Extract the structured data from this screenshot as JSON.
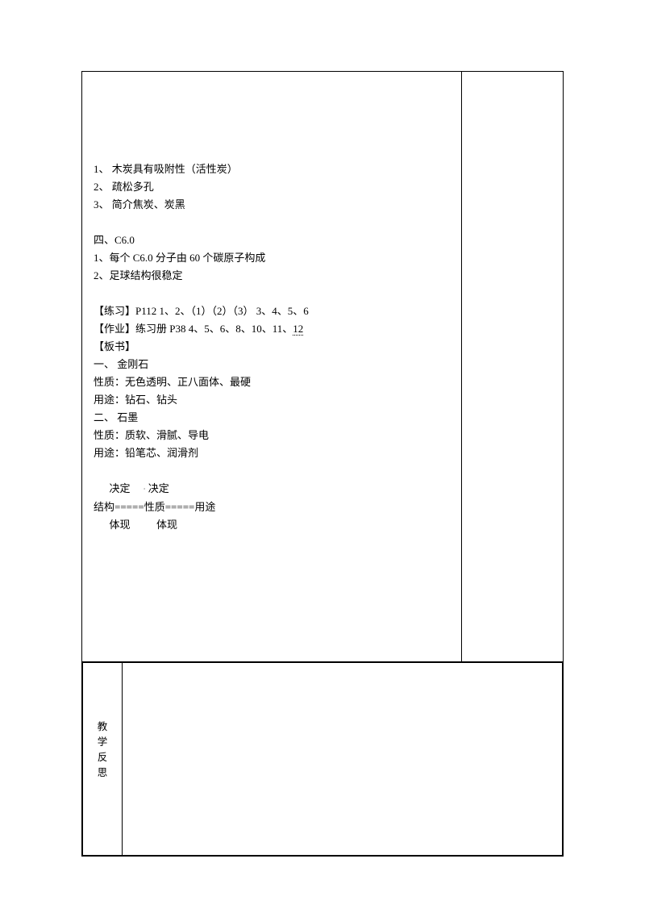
{
  "section_3": {
    "items": [
      "1、 木炭具有吸附性（活性炭）",
      "2、 疏松多孔",
      "3、 简介焦炭、炭黑"
    ]
  },
  "section_4": {
    "title": "四、C6.0",
    "items": [
      "1、每个 C6.0 分子由 60 个碳原子构成",
      "2、足球结构很稳定"
    ]
  },
  "exercise": {
    "label": "【练习】",
    "text": "P112 1、2、（1）（2）（3） 3、4、5、6"
  },
  "homework": {
    "label": "【作业】",
    "prefix": "练习册 P38  4、5、6、8、10、11、",
    "last": "12"
  },
  "board": {
    "label": "【板书】",
    "diamond_title": "一、 金刚石",
    "diamond_prop": "性质：无色透明、正八面体、最硬",
    "diamond_use": "用途：钻石、钻头",
    "graphite_title": "二、 石墨",
    "graphite_prop": "性质：质软、滑腻、导电",
    "graphite_use": "用途：铅笔芯、润滑剂"
  },
  "diagram": {
    "top_left": "决定",
    "top_right": "决定",
    "structure": "结构",
    "property": "性质",
    "use": "用途",
    "arrow": "=====",
    "bottom_left": "体现",
    "bottom_right": "体现"
  },
  "reflection_label": [
    "教",
    "学",
    "反",
    "思"
  ]
}
